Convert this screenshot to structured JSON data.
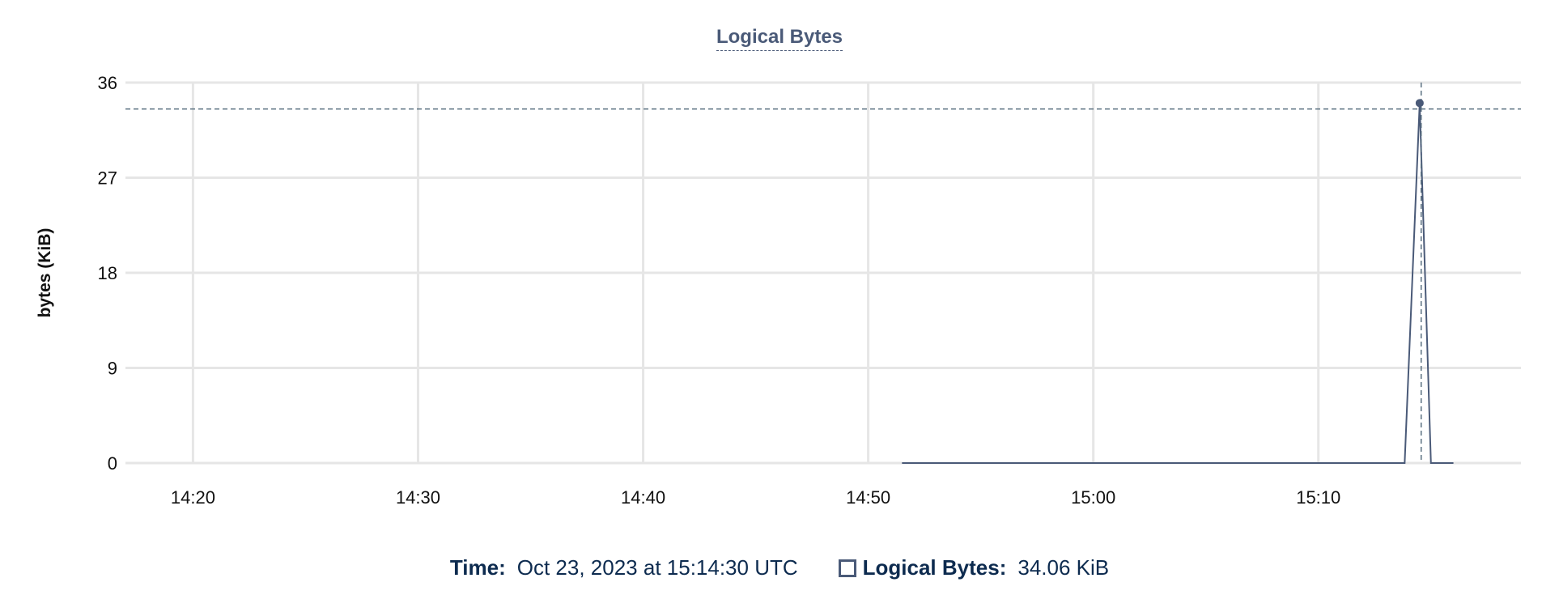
{
  "chart_data": {
    "type": "line",
    "title": "Logical Bytes",
    "ylabel": "bytes (KiB)",
    "xlabel": "",
    "ylim": [
      0,
      36
    ],
    "yticks": [
      0,
      9,
      18,
      27,
      36
    ],
    "xlim": [
      "14:17:00",
      "15:19:00"
    ],
    "xticks": [
      "14:20",
      "14:30",
      "14:40",
      "14:50",
      "15:00",
      "15:10"
    ],
    "grid": true,
    "series": [
      {
        "name": "Logical Bytes",
        "color": "#4a5a78",
        "x": [
          "14:51:30",
          "15:13:50",
          "15:14:30",
          "15:15:00",
          "15:16:00"
        ],
        "values": [
          0,
          0,
          34.06,
          0,
          0
        ]
      }
    ],
    "crosshair": {
      "x": "15:14:34",
      "y": 33.5
    },
    "highlight": {
      "x": "15:14:30",
      "value": 34.06
    }
  },
  "legend": {
    "time_label": "Time:",
    "time_value": "Oct 23, 2023 at 15:14:30 UTC",
    "series_label": "Logical Bytes:",
    "series_value": "34.06 KiB"
  }
}
